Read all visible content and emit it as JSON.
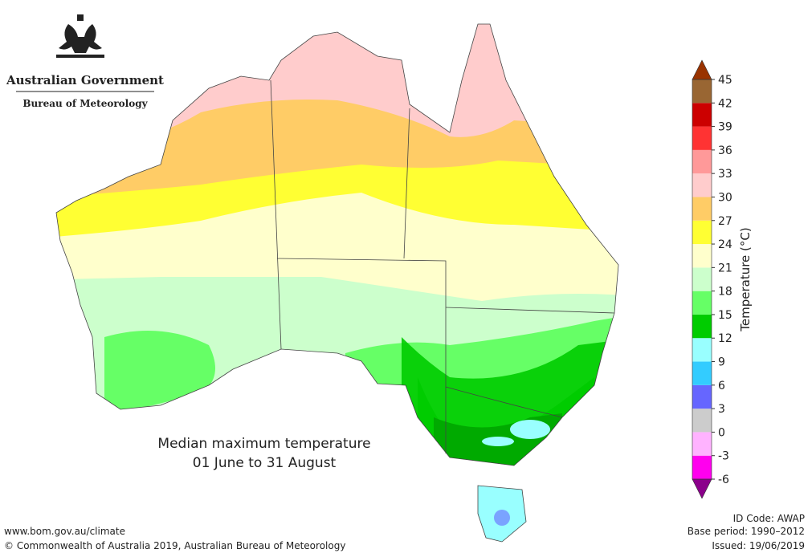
{
  "header": {
    "government": "Australian Government",
    "agency": "Bureau of Meteorology"
  },
  "map": {
    "title": "Median maximum temperature",
    "period": "01 June to 31 August"
  },
  "legend": {
    "label": "Temperature (°C)",
    "ticks": [
      -6,
      -3,
      0,
      3,
      6,
      9,
      12,
      15,
      18,
      21,
      24,
      27,
      30,
      33,
      36,
      39,
      42,
      45
    ],
    "colors": [
      "#ff00ee",
      "#ffb3ff",
      "#cccccc",
      "#6666ff",
      "#33ccff",
      "#99ffff",
      "#00cc00",
      "#66ff66",
      "#ccffcc",
      "#ffffcc",
      "#ffff33",
      "#ffcc66",
      "#ffcccc",
      "#ff9999",
      "#ff3333",
      "#cc0000",
      "#996633"
    ],
    "under_color": "#8b008b",
    "over_color": "#993300"
  },
  "footer": {
    "website": "www.bom.gov.au/climate",
    "copyright": "© Commonwealth of Australia 2019, Australian Bureau of Meteorology",
    "id_code": "ID Code: AWAP",
    "base_period": "Base period: 1990–2012",
    "issued": "Issued: 19/06/2019"
  }
}
